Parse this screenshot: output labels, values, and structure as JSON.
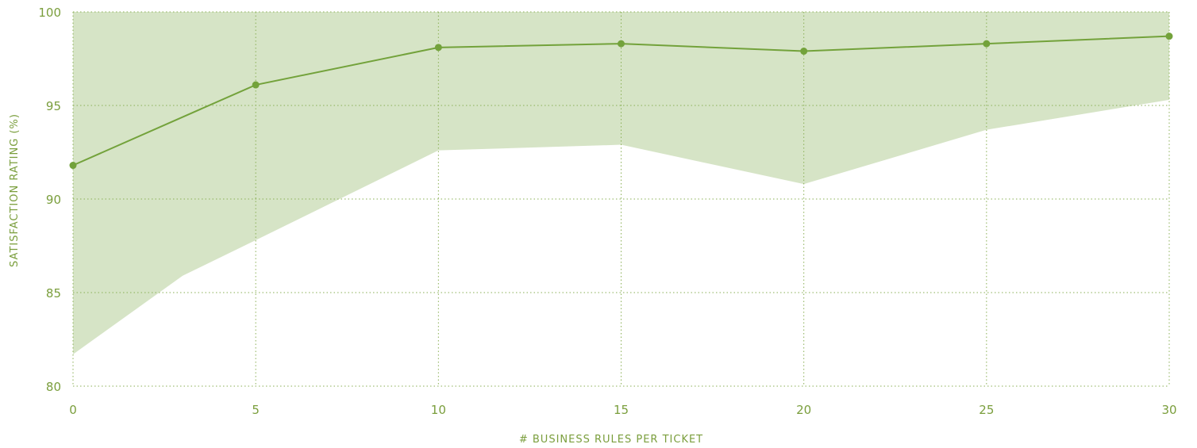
{
  "chart_data": {
    "type": "line",
    "title": "",
    "xlabel": "# BUSINESS RULES PER TICKET",
    "ylabel": "SATISFACTION RATING (%)",
    "xlim": [
      0,
      30
    ],
    "ylim": [
      80,
      100
    ],
    "x_ticks": [
      0,
      5,
      10,
      15,
      20,
      25,
      30
    ],
    "y_ticks": [
      80,
      85,
      90,
      95,
      100
    ],
    "x_tick_labels": [
      "0",
      "5",
      "10",
      "15",
      "20",
      "25",
      "30"
    ],
    "y_tick_labels": [
      "80",
      "85",
      "90",
      "95",
      "100"
    ],
    "grid": true,
    "series": [
      {
        "x": [
          0,
          5,
          10,
          15,
          20,
          25,
          30
        ],
        "values": [
          91.8,
          96.1,
          98.1,
          98.3,
          97.9,
          98.3,
          98.7
        ]
      }
    ],
    "band": {
      "x": [
        0,
        3,
        5,
        10,
        15,
        20,
        25,
        30
      ],
      "upper": [
        100,
        100,
        100,
        100,
        100,
        100,
        100,
        100
      ],
      "lower": [
        81.7,
        85.9,
        87.8,
        92.6,
        92.9,
        90.8,
        93.7,
        95.3
      ]
    },
    "colors": {
      "line": "#73a23b",
      "band": "#d6e4c6",
      "grid": "#8aaf55",
      "text": "#7a9e3c"
    }
  }
}
